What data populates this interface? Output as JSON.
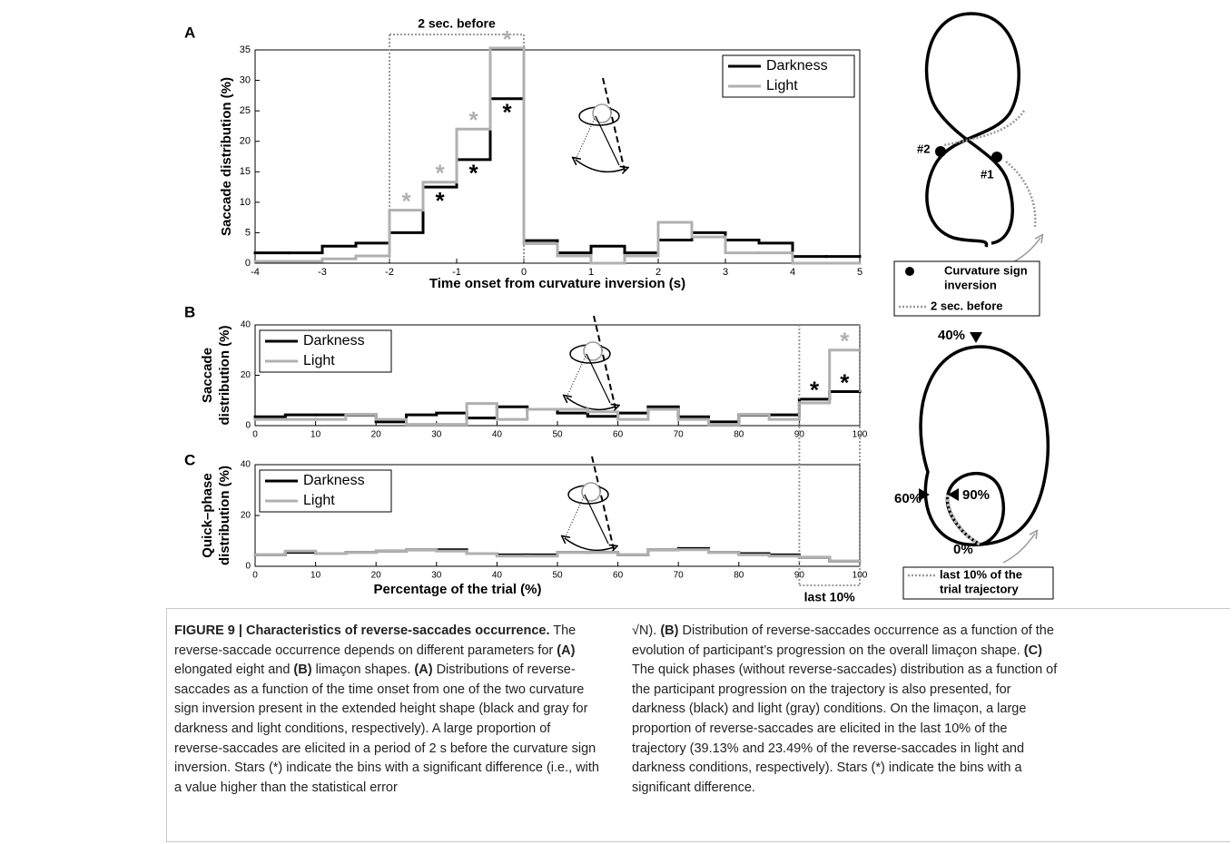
{
  "chart_data": [
    {
      "type": "histogram",
      "panel": "A",
      "ylabel": [
        "Saccade distribution (%)"
      ],
      "xlabel": "Time onset from curvature inversion (s)",
      "bins": [
        -4,
        -3.5,
        -3,
        -2.5,
        -2,
        -1.5,
        -1,
        -0.5,
        0,
        0.5,
        1,
        1.5,
        2,
        2.5,
        3,
        3.5,
        4,
        4.5,
        5
      ],
      "series": [
        {
          "name": "Darkness",
          "color": "#000000",
          "values": [
            1.7,
            1.7,
            2.8,
            3.3,
            5,
            12.5,
            17,
            27,
            3.7,
            1.7,
            2.8,
            1.7,
            3.8,
            5,
            3.8,
            3.3,
            1.1,
            1.1
          ],
          "significant": [
            5,
            6,
            7
          ],
          "star_position": "below"
        },
        {
          "name": "Light",
          "color": "#b0b0b0",
          "values": [
            0.3,
            0.3,
            0.7,
            1.2,
            8.7,
            13.3,
            22,
            35.3,
            3.2,
            1.2,
            0,
            1.2,
            6.7,
            4.3,
            1.7,
            1.7,
            0,
            0
          ],
          "significant": [
            4,
            5,
            6,
            7
          ],
          "star_position": "above"
        }
      ],
      "star": "*",
      "xlim": [
        -4,
        5
      ],
      "ylim": [
        0,
        35
      ],
      "xticks": [
        -4,
        -3,
        -2,
        -1,
        0,
        1,
        2,
        3,
        4,
        5
      ],
      "yticks": [
        0,
        5,
        10,
        15,
        20,
        25,
        30,
        35
      ],
      "legend": "upper right",
      "bracket": {
        "text": "2 sec. before",
        "range": [
          -2,
          0
        ]
      }
    },
    {
      "type": "histogram",
      "panel": "B",
      "ylabel": [
        "Saccade",
        "distribution (%)"
      ],
      "bins": [
        0,
        5,
        10,
        15,
        20,
        25,
        30,
        35,
        40,
        45,
        50,
        55,
        60,
        65,
        70,
        75,
        80,
        85,
        90,
        95,
        100
      ],
      "series": [
        {
          "name": "Darkness",
          "color": "#000000",
          "values": [
            3.5,
            4.3,
            4.3,
            4.3,
            1.5,
            4.3,
            5,
            3,
            7.5,
            6.5,
            5,
            3.7,
            5,
            7.5,
            3.5,
            1.5,
            4.3,
            4.3,
            10.5,
            13.5
          ],
          "significant": [
            18,
            19
          ],
          "star_position": "above"
        },
        {
          "name": "Light",
          "color": "#b0b0b0",
          "values": [
            2.5,
            2.5,
            2.5,
            4.5,
            2.5,
            0.5,
            0.5,
            8.8,
            2.5,
            6.5,
            6.5,
            5.5,
            2.5,
            6.5,
            2.5,
            0.5,
            4.5,
            2.5,
            9,
            30
          ],
          "significant": [
            19
          ],
          "star_position": "above"
        }
      ],
      "star": "*",
      "xlim": [
        0,
        100
      ],
      "ylim": [
        0,
        40
      ],
      "xticks": [
        0,
        10,
        20,
        30,
        40,
        50,
        60,
        70,
        80,
        90,
        100
      ],
      "yticks": [
        0,
        20,
        40
      ],
      "legend": "upper left"
    },
    {
      "type": "histogram",
      "panel": "C",
      "ylabel": [
        "Quick–phase",
        "distribution (%)"
      ],
      "xlabel": "Percentage of the trial (%)",
      "bins": [
        0,
        5,
        10,
        15,
        20,
        25,
        30,
        35,
        40,
        45,
        50,
        55,
        60,
        65,
        70,
        75,
        80,
        85,
        90,
        95,
        100
      ],
      "series": [
        {
          "name": "Darkness",
          "color": "#000000",
          "values": [
            4.5,
            5.5,
            5,
            5.5,
            6,
            6.5,
            6.5,
            5,
            4.5,
            4.5,
            5.5,
            5.5,
            4.5,
            6.5,
            7,
            5.5,
            5,
            4.5,
            3.5,
            2
          ]
        },
        {
          "name": "Light",
          "color": "#b0b0b0",
          "values": [
            4.5,
            6,
            5,
            5.5,
            6,
            6.5,
            6,
            5,
            4,
            4,
            5.5,
            5.5,
            4.5,
            6.5,
            6.5,
            5.5,
            4.5,
            4,
            3.5,
            2
          ]
        }
      ],
      "xlim": [
        0,
        100
      ],
      "ylim": [
        0,
        40
      ],
      "xticks": [
        0,
        10,
        20,
        30,
        40,
        50,
        60,
        70,
        80,
        90,
        100
      ],
      "yticks": [
        0,
        20,
        40
      ],
      "legend": "upper left",
      "bracket": {
        "text": "last 10%",
        "range": [
          90,
          100
        ]
      }
    }
  ],
  "diagrams": {
    "eight": {
      "labels": [
        "#2",
        "#1"
      ],
      "legend": {
        "marker": [
          "Curvature sign",
          "inversion"
        ],
        "dashed": "2 sec. before"
      }
    },
    "limacon": {
      "labels": [
        "40%",
        "60%",
        "90%",
        "0%"
      ],
      "legend": [
        "last 10% of the",
        "trial trajectory"
      ]
    }
  },
  "caption": {
    "left": [
      {
        "text": "FIGURE 9 | Characteristics of reverse-saccades occurrence.",
        "bold": true
      },
      {
        "text": " The reverse-saccade occurrence depends on different parameters for "
      },
      {
        "text": "(A)",
        "bold": true
      },
      {
        "text": " elongated eight and "
      },
      {
        "text": "(B)",
        "bold": true
      },
      {
        "text": " limaçon shapes. "
      },
      {
        "text": "(A)",
        "bold": true
      },
      {
        "text": " Distributions of reverse-saccades as a function of the time onset from one of the two curvature sign inversion present in the extended height shape (black and gray for darkness and light conditions, respectively). A large proportion of reverse-saccades are elicited in a period of 2 s before the curvature sign inversion. Stars (*) indicate the bins with a significant difference (i.e., with a value higher than the statistical error"
      }
    ],
    "right": [
      {
        "text": "√N). "
      },
      {
        "text": "(B)",
        "bold": true
      },
      {
        "text": " Distribution of reverse-saccades occurrence as a function of the evolution of participant’s progression on the overall limaçon shape. "
      },
      {
        "text": "(C)",
        "bold": true
      },
      {
        "text": " The quick phases (without reverse-saccades) distribution as a function of the participant progression on the trajectory is also presented, for darkness (black) and light (gray) conditions. On the limaçon, a large proportion of reverse-saccades are elicited in the last 10% of the trajectory (39.13% and 23.49% of the reverse-saccades in light and darkness conditions, respectively). Stars (*) indicate the bins with a significant difference."
      }
    ]
  }
}
